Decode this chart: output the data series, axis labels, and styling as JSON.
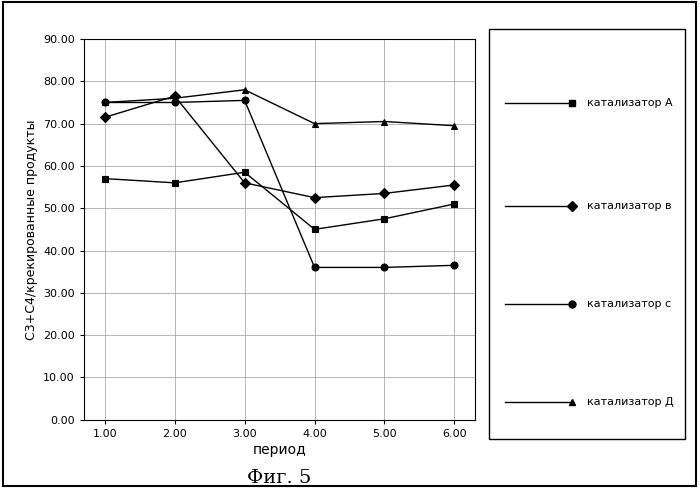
{
  "x": [
    1.0,
    2.0,
    3.0,
    4.0,
    5.0,
    6.0
  ],
  "catalyst_A": [
    57.0,
    56.0,
    58.5,
    45.0,
    47.5,
    51.0
  ],
  "catalyst_B": [
    71.5,
    76.5,
    56.0,
    52.5,
    53.5,
    55.5
  ],
  "catalyst_C": [
    75.0,
    75.0,
    75.5,
    36.0,
    36.0,
    36.5
  ],
  "catalyst_D": [
    75.0,
    76.0,
    78.0,
    70.0,
    70.5,
    69.5
  ],
  "legend_A": "катализатор А",
  "legend_B": "катализатор в",
  "legend_C": "катализатор с",
  "legend_D": "катализатор Д",
  "xlabel": "период",
  "ylabel": "C3+C4/крекированные продукты",
  "title_bottom": "Фиг. 5",
  "ylim": [
    0.0,
    90.0
  ],
  "xlim": [
    1.0,
    6.0
  ],
  "yticks": [
    0.0,
    10.0,
    20.0,
    30.0,
    40.0,
    50.0,
    60.0,
    70.0,
    80.0,
    90.0
  ],
  "xticks": [
    1.0,
    2.0,
    3.0,
    4.0,
    5.0,
    6.0
  ],
  "color": "#000000",
  "bg_color": "#ffffff",
  "grid_color": "#999999"
}
